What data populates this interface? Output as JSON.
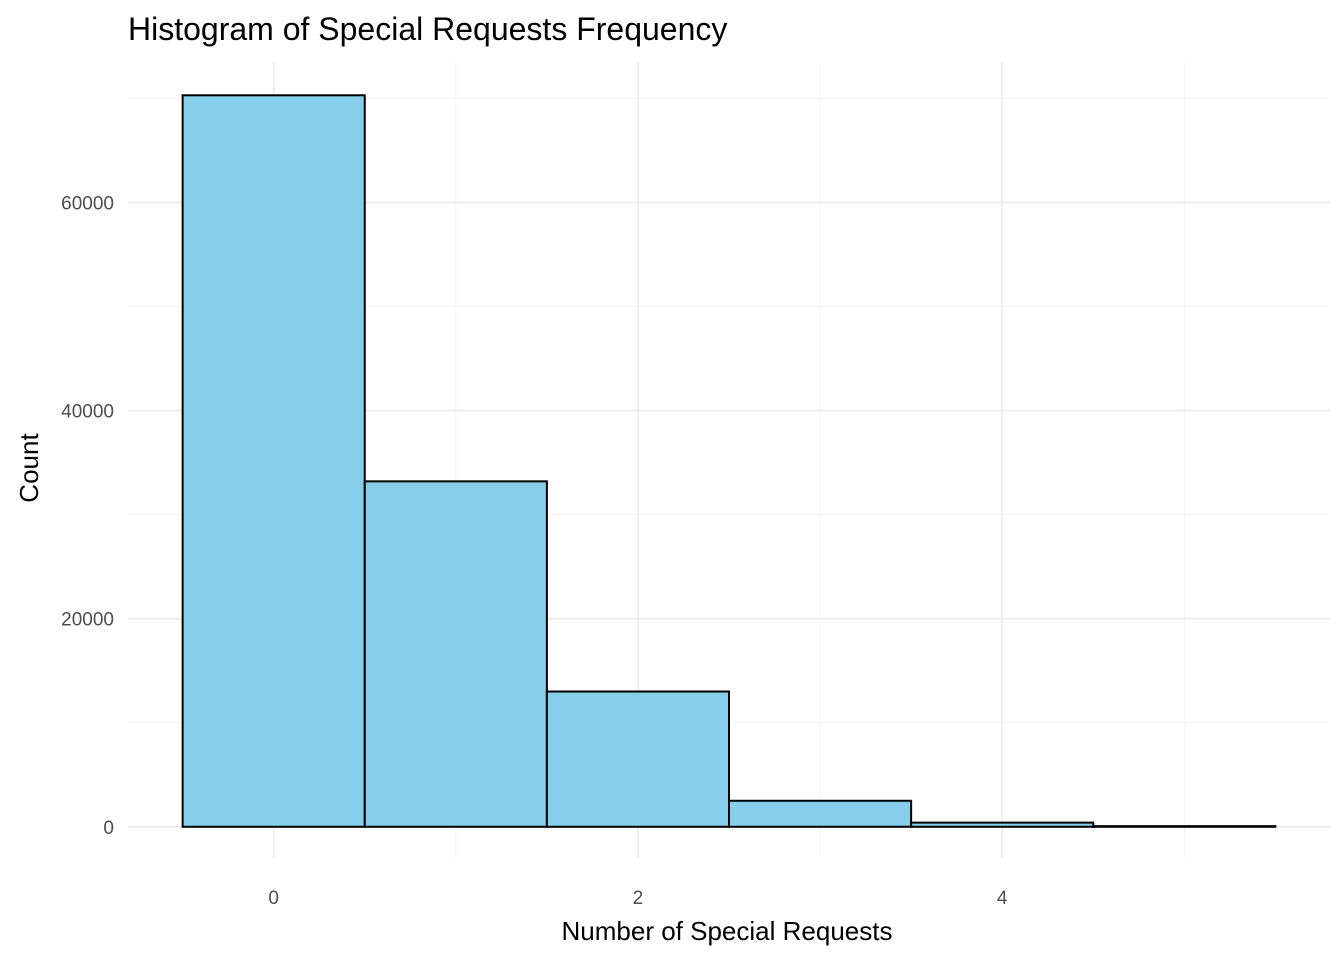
{
  "chart_data": {
    "type": "bar",
    "title": "Histogram of Special Requests Frequency",
    "xlabel": "Number of Special Requests",
    "ylabel": "Count",
    "bin_centers": [
      0,
      1,
      2,
      3,
      4,
      5
    ],
    "bin_width": 1,
    "values": [
      70300,
      33200,
      13000,
      2500,
      400,
      60
    ],
    "xlim": [
      -0.8,
      5.8
    ],
    "ylim": [
      -3000,
      73500
    ],
    "x_ticks": [
      0,
      2,
      4
    ],
    "x_tick_labels": [
      "0",
      "2",
      "4"
    ],
    "y_ticks": [
      0,
      20000,
      40000,
      60000
    ],
    "y_tick_labels": [
      "0",
      "20000",
      "40000",
      "60000"
    ],
    "grid": true,
    "legend": "none",
    "colors": {
      "bar_fill": "#87ceeb",
      "bar_outline": "#000000"
    }
  }
}
